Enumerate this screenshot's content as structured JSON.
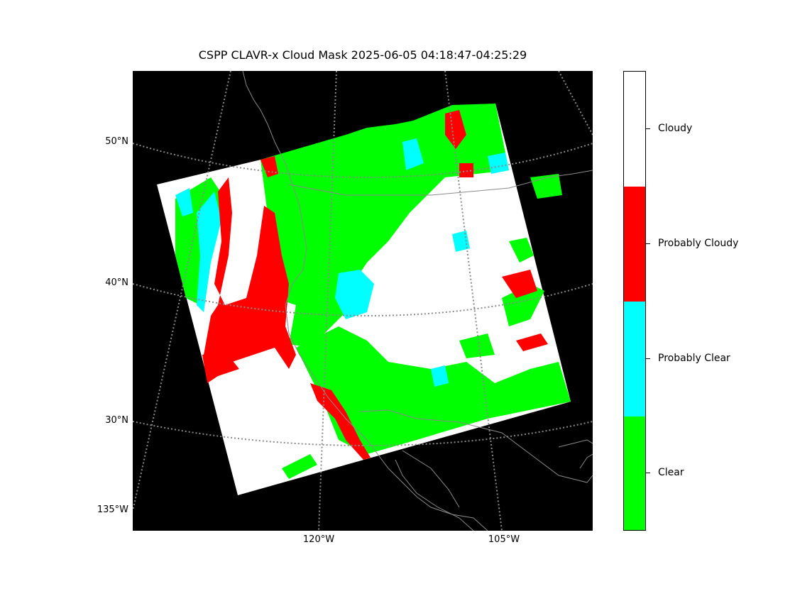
{
  "title": "CSPP CLAVR-x Cloud Mask 2025-06-05 04:18:47-04:25:29",
  "lat_labels": [
    "50°N",
    "40°N",
    "30°N",
    "135°W"
  ],
  "lon_labels": [
    "120°W",
    "105°W"
  ],
  "legend": {
    "categories": [
      {
        "label": "Cloudy",
        "color": "#ffffff"
      },
      {
        "label": "Probably Cloudy",
        "color": "#ff0000"
      },
      {
        "label": "Probably Clear",
        "color": "#00ffff"
      },
      {
        "label": "Clear",
        "color": "#00ff00"
      }
    ]
  },
  "colors": {
    "background": "#000000",
    "graticule": "#8a8a8a",
    "coastline": "#8a8a8a",
    "clear": "#00ff00",
    "probably_clear": "#00ffff",
    "probably_cloudy": "#ff0000",
    "cloudy": "#ffffff"
  }
}
